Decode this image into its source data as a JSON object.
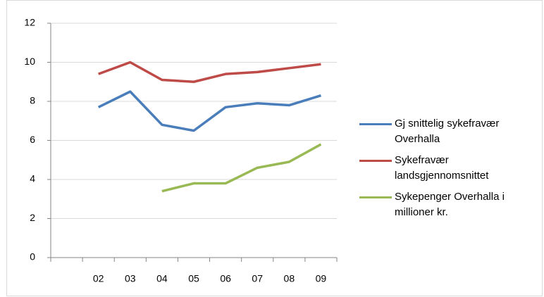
{
  "chart_data": {
    "type": "line",
    "categories": [
      null,
      "02",
      "03",
      "04",
      "05",
      "06",
      "07",
      "08",
      "09"
    ],
    "series": [
      {
        "name": "Gj snittelig sykefravær Overhalla",
        "color": "#4a7ebb",
        "values": [
          null,
          7.7,
          8.5,
          6.8,
          6.5,
          7.7,
          7.9,
          7.8,
          8.3
        ]
      },
      {
        "name": "Sykefravær landsgjennomsnittet",
        "color": "#be4b48",
        "values": [
          null,
          9.4,
          10.0,
          9.1,
          9.0,
          9.4,
          9.5,
          9.7,
          9.9
        ]
      },
      {
        "name": "Sykepenger Overhalla i millioner kr.",
        "color": "#98b954",
        "values": [
          null,
          null,
          null,
          3.4,
          3.8,
          3.8,
          4.6,
          4.9,
          5.8
        ]
      }
    ],
    "ylim": [
      0,
      12
    ],
    "yticks": [
      0,
      2,
      4,
      6,
      8,
      10,
      12
    ],
    "grid": true,
    "legend": "right"
  }
}
